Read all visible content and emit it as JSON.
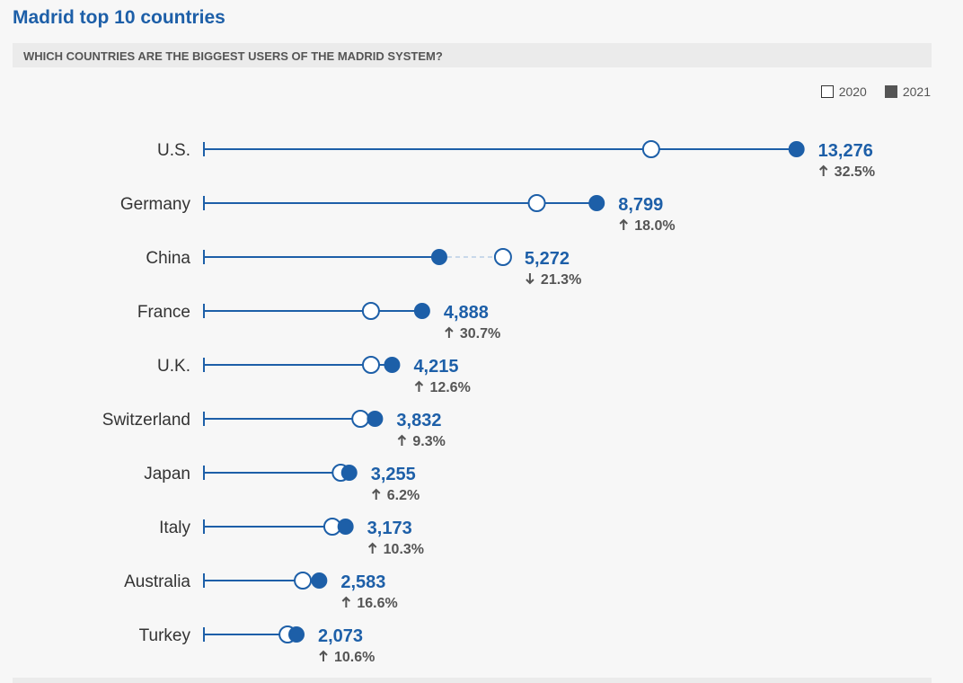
{
  "title": "Madrid top 10 countries",
  "subtitle": "WHICH COUNTRIES ARE THE BIGGEST USERS OF THE MADRID SYSTEM?",
  "legend": {
    "open_label": "2020",
    "filled_label": "2021"
  },
  "colors": {
    "accent": "#1d5fa8",
    "text": "#333333",
    "muted": "#555555"
  },
  "chart_data": {
    "type": "dumbbell",
    "title": "Madrid top 10 countries",
    "series_labels": [
      "2020",
      "2021"
    ],
    "rows": [
      {
        "country": "U.S.",
        "v2020": 10019,
        "v2021": 13276,
        "label": "13,276",
        "change": "32.5%",
        "direction": "up"
      },
      {
        "country": "Germany",
        "v2020": 7457,
        "v2021": 8799,
        "label": "8,799",
        "change": "18.0%",
        "direction": "up"
      },
      {
        "country": "China",
        "v2020": 6700,
        "v2021": 5272,
        "label": "5,272",
        "change": "21.3%",
        "direction": "down"
      },
      {
        "country": "France",
        "v2020": 3741,
        "v2021": 4888,
        "label": "4,888",
        "change": "30.7%",
        "direction": "up"
      },
      {
        "country": "U.K.",
        "v2020": 3743,
        "v2021": 4215,
        "label": "4,215",
        "change": "12.6%",
        "direction": "up"
      },
      {
        "country": "Switzerland",
        "v2020": 3506,
        "v2021": 3832,
        "label": "3,832",
        "change": "9.3%",
        "direction": "up"
      },
      {
        "country": "Japan",
        "v2020": 3065,
        "v2021": 3255,
        "label": "3,255",
        "change": "6.2%",
        "direction": "up"
      },
      {
        "country": "Italy",
        "v2020": 2877,
        "v2021": 3173,
        "label": "3,173",
        "change": "10.3%",
        "direction": "up"
      },
      {
        "country": "Australia",
        "v2020": 2215,
        "v2021": 2583,
        "label": "2,583",
        "change": "16.6%",
        "direction": "up"
      },
      {
        "country": "Turkey",
        "v2020": 1874,
        "v2021": 2073,
        "label": "2,073",
        "change": "10.6%",
        "direction": "up"
      }
    ]
  }
}
